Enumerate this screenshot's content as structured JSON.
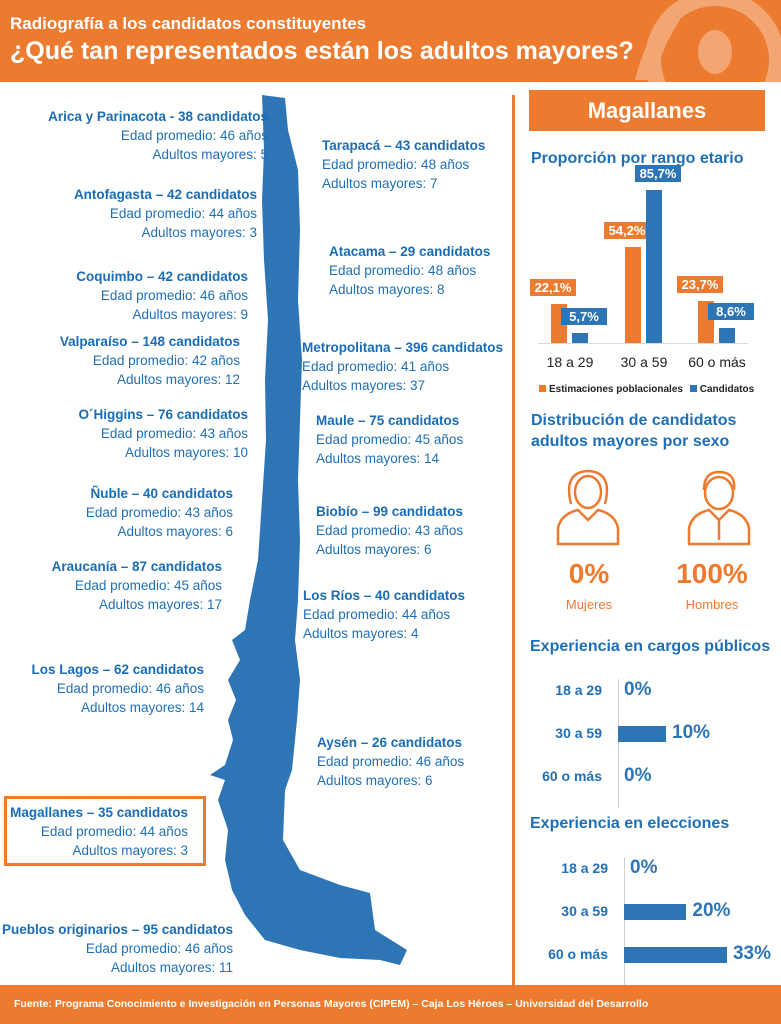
{
  "header": {
    "subtitle": "Radiografía a los candidatos constituyentes",
    "title": "¿Qué tan representados están los adultos mayores?"
  },
  "regions": [
    {
      "title": "Arica y Parinacota - 38 candidatos",
      "age": "Edad promedio: 46 años",
      "elders": "Adultos mayores: 5"
    },
    {
      "title": "Tarapacá – 43 candidatos",
      "age": "Edad promedio: 48 años",
      "elders": "Adultos mayores: 7"
    },
    {
      "title": "Antofagasta – 42 candidatos",
      "age": "Edad promedio: 44 años",
      "elders": "Adultos mayores: 3"
    },
    {
      "title": "Atacama – 29 candidatos",
      "age": "Edad promedio: 48 años",
      "elders": "Adultos mayores: 8"
    },
    {
      "title": "Coquimbo – 42 candidatos",
      "age": "Edad promedio: 46 años",
      "elders": "Adultos mayores: 9"
    },
    {
      "title": "Valparaíso – 148 candidatos",
      "age": "Edad promedio: 42 años",
      "elders": "Adultos mayores: 12"
    },
    {
      "title": "Metropolitana – 396 candidatos",
      "age": "Edad promedio: 41 años",
      "elders": "Adultos mayores: 37"
    },
    {
      "title": "O´Higgins – 76 candidatos",
      "age": "Edad promedio: 43 años",
      "elders": "Adultos mayores: 10"
    },
    {
      "title": "Maule – 75 candidatos",
      "age": "Edad promedio: 45 años",
      "elders": "Adultos mayores: 14"
    },
    {
      "title": "Ñuble – 40 candidatos",
      "age": "Edad promedio: 43 años",
      "elders": "Adultos mayores: 6"
    },
    {
      "title": "Biobío – 99 candidatos",
      "age": "Edad promedio: 43 años",
      "elders": "Adultos mayores: 6"
    },
    {
      "title": "Araucanía – 87 candidatos",
      "age": "Edad promedio: 45 años",
      "elders": "Adultos mayores: 17"
    },
    {
      "title": "Los Ríos – 40 candidatos",
      "age": "Edad promedio: 44 años",
      "elders": "Adultos mayores: 4"
    },
    {
      "title": "Los Lagos – 62 candidatos",
      "age": "Edad promedio: 46 años",
      "elders": "Adultos mayores: 14"
    },
    {
      "title": "Aysén – 26 candidatos",
      "age": "Edad promedio: 46 años",
      "elders": "Adultos mayores: 6"
    },
    {
      "title": "Magallanes – 35 candidatos",
      "age": "Edad promedio: 44 años",
      "elders": "Adultos mayores: 3"
    },
    {
      "title": "Pueblos originarios – 95 candidatos",
      "age": "Edad promedio: 46 años",
      "elders": "Adultos mayores: 11"
    }
  ],
  "selected_region": "Magallanes",
  "colors": {
    "orange": "#ec7b30",
    "blue": "#2e75b6"
  },
  "sex": {
    "title": "Distribución de candidatos adultos mayores por sexo",
    "women_pct": "0%",
    "women_label": "Mujeres",
    "men_pct": "100%",
    "men_label": "Hombres"
  },
  "chart_data": [
    {
      "type": "bar",
      "title": "Proporción por rango etario",
      "categories": [
        "18 a 29",
        "30 a 59",
        "60 o más"
      ],
      "series": [
        {
          "name": "Estimaciones poblacionales",
          "color": "#ec7b30",
          "values": [
            22.1,
            54.2,
            23.7
          ],
          "labels": [
            "22,1%",
            "54,2%",
            "23,7%"
          ]
        },
        {
          "name": "Candidatos",
          "color": "#2e75b6",
          "values": [
            5.7,
            85.7,
            8.6
          ],
          "labels": [
            "5,7%",
            "85,7%",
            "8,6%"
          ]
        }
      ],
      "legend": "bottom"
    },
    {
      "type": "bar",
      "orientation": "horizontal",
      "title": "Experiencia en cargos públicos",
      "categories": [
        "18 a 29",
        "30 a 59",
        "60 o más"
      ],
      "values": [
        0,
        10,
        0
      ],
      "labels": [
        "0%",
        "10%",
        "0%"
      ]
    },
    {
      "type": "bar",
      "orientation": "horizontal",
      "title": "Experiencia en elecciones",
      "categories": [
        "18 a 29",
        "30 a 59",
        "60 o más"
      ],
      "values": [
        0,
        20,
        33
      ],
      "labels": [
        "0%",
        "20%",
        "33%"
      ]
    }
  ],
  "footer": "Fuente: Programa Conocimiento e Investigación en Personas Mayores (CIPEM) – Caja Los Héroes – Universidad del Desarrollo"
}
